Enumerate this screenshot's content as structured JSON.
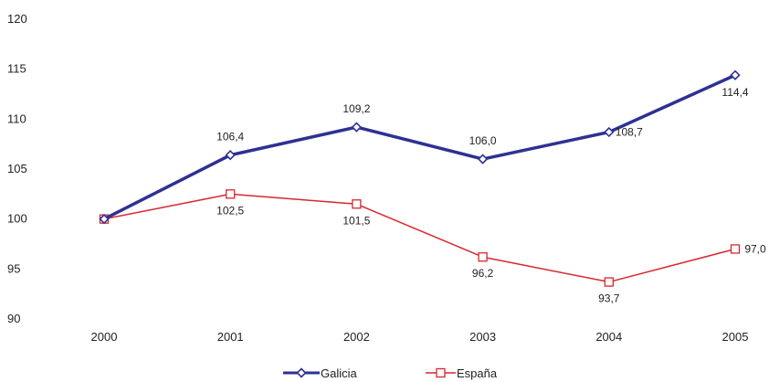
{
  "chart_data": {
    "type": "line",
    "categories": [
      "2000",
      "2001",
      "2002",
      "2003",
      "2004",
      "2005"
    ],
    "y_ticks": [
      "90",
      "95",
      "100",
      "105",
      "110",
      "115",
      "120"
    ],
    "ylim": [
      90,
      120
    ],
    "grid": false,
    "legend_position": "bottom-center",
    "series": [
      {
        "name": "Galicia",
        "color": "#2e3192",
        "marker": "diamond",
        "values": [
          100,
          106.4,
          109.2,
          106.0,
          108.7,
          114.4
        ],
        "labels": [
          "",
          "106,4",
          "109,2",
          "106,0",
          "108,7",
          "114,4"
        ]
      },
      {
        "name": "España",
        "color": "#d7272f",
        "marker": "square",
        "values": [
          100,
          102.5,
          101.5,
          96.2,
          93.7,
          97.0
        ],
        "labels": [
          "",
          "102,5",
          "101,5",
          "96,2",
          "93,7",
          "97,0"
        ]
      }
    ]
  }
}
